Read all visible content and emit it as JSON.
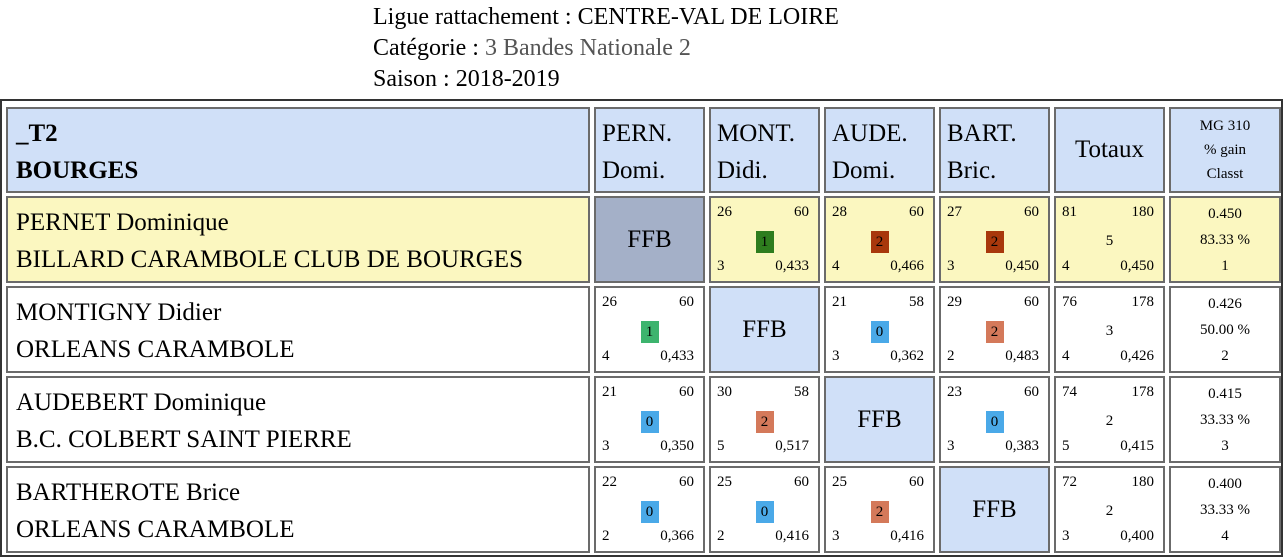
{
  "header": {
    "league_label": "Ligue rattachement : ",
    "league_value": "CENTRE-VAL DE LOIRE",
    "category_label": "Catégorie : ",
    "category_value": "3 Bandes Nationale 2",
    "season_label": "Saison : ",
    "season_value": "2018-2019"
  },
  "table": {
    "team_code": "_T2",
    "team_city": "BOURGES",
    "columns": [
      {
        "line1": "PERN.",
        "line2": "Domi."
      },
      {
        "line1": "MONT.",
        "line2": "Didi."
      },
      {
        "line1": "AUDE.",
        "line2": "Domi."
      },
      {
        "line1": "BART.",
        "line2": "Bric."
      }
    ],
    "totals_header": "Totaux",
    "mg_header": {
      "line1": "MG 310",
      "line2": "% gain",
      "line3": "Classt"
    },
    "ffb_label": "FFB",
    "colors": {
      "win": "#3db46e",
      "win_dark": "#2e7d1e",
      "draw": "#4aa9e8",
      "loss": "#d4795a",
      "loss_dark": "#a8380c",
      "header_blue": "#d0e0f8",
      "highlight_yellow": "#fbf7c0",
      "ffb_gray": "#a4b0c8"
    },
    "rows": [
      {
        "name": "PERNET Dominique",
        "club": "BILLARD CARAMBOLE CLUB DE BOURGES",
        "matches": [
          null,
          {
            "points": "26",
            "max": "60",
            "score": "1",
            "innings": "3",
            "avg": "0,433",
            "color": "win_dark"
          },
          {
            "points": "28",
            "max": "60",
            "score": "2",
            "innings": "4",
            "avg": "0,466",
            "color": "loss_dark"
          },
          {
            "points": "27",
            "max": "60",
            "score": "2",
            "innings": "3",
            "avg": "0,450",
            "color": "loss_dark"
          }
        ],
        "totals": {
          "points": "81",
          "max": "180",
          "score": "5",
          "innings": "4",
          "avg": "0,450"
        },
        "mg": {
          "avg": "0.450",
          "pct": "83.33 %",
          "rank": "1"
        }
      },
      {
        "name": "MONTIGNY Didier",
        "club": "ORLEANS CARAMBOLE",
        "matches": [
          {
            "points": "26",
            "max": "60",
            "score": "1",
            "innings": "4",
            "avg": "0,433",
            "color": "win"
          },
          null,
          {
            "points": "21",
            "max": "58",
            "score": "0",
            "innings": "3",
            "avg": "0,362",
            "color": "draw"
          },
          {
            "points": "29",
            "max": "60",
            "score": "2",
            "innings": "2",
            "avg": "0,483",
            "color": "loss"
          }
        ],
        "totals": {
          "points": "76",
          "max": "178",
          "score": "3",
          "innings": "4",
          "avg": "0,426"
        },
        "mg": {
          "avg": "0.426",
          "pct": "50.00 %",
          "rank": "2"
        }
      },
      {
        "name": "AUDEBERT Dominique",
        "club": "B.C. COLBERT SAINT PIERRE",
        "matches": [
          {
            "points": "21",
            "max": "60",
            "score": "0",
            "innings": "3",
            "avg": "0,350",
            "color": "draw"
          },
          {
            "points": "30",
            "max": "58",
            "score": "2",
            "innings": "5",
            "avg": "0,517",
            "color": "loss"
          },
          null,
          {
            "points": "23",
            "max": "60",
            "score": "0",
            "innings": "3",
            "avg": "0,383",
            "color": "draw"
          }
        ],
        "totals": {
          "points": "74",
          "max": "178",
          "score": "2",
          "innings": "5",
          "avg": "0,415"
        },
        "mg": {
          "avg": "0.415",
          "pct": "33.33 %",
          "rank": "3"
        }
      },
      {
        "name": "BARTHEROTE Brice",
        "club": "ORLEANS CARAMBOLE",
        "matches": [
          {
            "points": "22",
            "max": "60",
            "score": "0",
            "innings": "2",
            "avg": "0,366",
            "color": "draw"
          },
          {
            "points": "25",
            "max": "60",
            "score": "0",
            "innings": "2",
            "avg": "0,416",
            "color": "draw"
          },
          {
            "points": "25",
            "max": "60",
            "score": "2",
            "innings": "3",
            "avg": "0,416",
            "color": "loss"
          },
          null
        ],
        "totals": {
          "points": "72",
          "max": "180",
          "score": "2",
          "innings": "3",
          "avg": "0,400"
        },
        "mg": {
          "avg": "0.400",
          "pct": "33.33 %",
          "rank": "4"
        }
      }
    ]
  }
}
